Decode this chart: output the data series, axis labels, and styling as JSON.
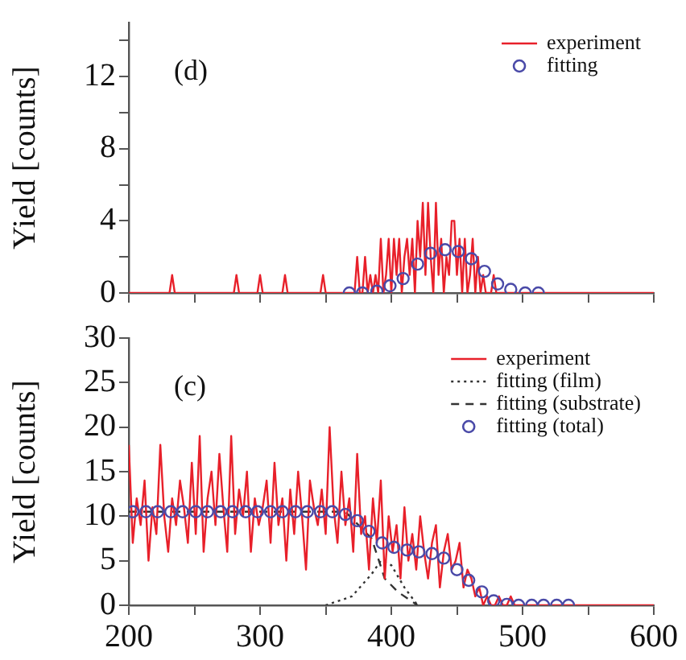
{
  "chart_data": [
    {
      "type": "line",
      "annotations": [
        "(d)"
      ],
      "ylabel": "Yield [counts]",
      "xlim": [
        200,
        600
      ],
      "xticks": [
        {
          "value": 200,
          "label": null
        },
        {
          "value": 250,
          "label": null
        },
        {
          "value": 300,
          "label": null
        },
        {
          "value": 350,
          "label": null
        },
        {
          "value": 400,
          "label": null
        },
        {
          "value": 450,
          "label": null
        },
        {
          "value": 500,
          "label": null
        },
        {
          "value": 550,
          "label": null
        },
        {
          "value": 600,
          "label": null
        }
      ],
      "ylim": [
        0,
        15
      ],
      "yticks": [
        0,
        {
          "value": 2,
          "label": null
        },
        4,
        {
          "value": 6,
          "label": null
        },
        8,
        {
          "value": 10,
          "label": null
        },
        12,
        {
          "value": 14,
          "label": null
        }
      ],
      "tick_labels": "y",
      "legend": "top right",
      "series": [
        {
          "name": "experiment",
          "color": "#e8202a",
          "line_style": "solid",
          "marker": "none",
          "x": [
            200,
            231,
            233,
            235,
            280,
            282,
            284,
            298,
            300,
            302,
            317,
            319,
            321,
            346,
            348,
            350,
            372,
            374,
            376,
            378,
            380,
            382,
            384,
            386,
            388,
            390,
            392,
            394,
            396,
            398,
            400,
            402,
            404,
            406,
            408,
            410,
            412,
            414,
            416,
            418,
            420,
            422,
            424,
            426,
            428,
            430,
            432,
            434,
            436,
            438,
            440,
            442,
            444,
            446,
            448,
            450,
            452,
            454,
            456,
            458,
            460,
            462,
            464,
            466,
            468,
            470,
            472,
            476,
            478,
            480,
            600
          ],
          "values": [
            0,
            0,
            1,
            0,
            0,
            1,
            0,
            0,
            1,
            0,
            0,
            1,
            0,
            0,
            1,
            0,
            0,
            2,
            0,
            0,
            2,
            0,
            1,
            0,
            1,
            0,
            3,
            0,
            1,
            3,
            0,
            3,
            1,
            3,
            0,
            2,
            3,
            1,
            3,
            0,
            4,
            2,
            5,
            1,
            5,
            2,
            0,
            5,
            1,
            3,
            0,
            2,
            1,
            4,
            4,
            1,
            3,
            0,
            3,
            0,
            1,
            3,
            0,
            2,
            0,
            1,
            0,
            0,
            1,
            0,
            0
          ]
        },
        {
          "name": "fitting",
          "type": "scatter",
          "color": "#4a4aa8",
          "marker": "circle",
          "x": [
            368,
            378,
            389,
            399,
            409,
            420,
            430,
            441,
            451,
            461,
            471,
            481,
            491,
            502,
            512
          ],
          "values": [
            0,
            0,
            0.1,
            0.4,
            0.8,
            1.6,
            2.2,
            2.4,
            2.3,
            1.9,
            1.2,
            0.5,
            0.2,
            0,
            0
          ]
        }
      ]
    },
    {
      "type": "line",
      "annotations": [
        "(c)"
      ],
      "ylabel": "Yield [counts]",
      "xlim": [
        200,
        600
      ],
      "xticks": [
        200,
        {
          "value": 250,
          "label": null
        },
        300,
        {
          "value": 350,
          "label": null
        },
        400,
        {
          "value": 450,
          "label": null
        },
        500,
        {
          "value": 550,
          "label": null
        },
        600
      ],
      "ylim": [
        0,
        30
      ],
      "yticks": [
        0,
        5,
        10,
        15,
        20,
        25,
        30
      ],
      "legend": "top right",
      "series": [
        {
          "name": "experiment",
          "color": "#e8202a",
          "line_style": "solid",
          "marker": "none",
          "x": [
            200,
            203,
            206,
            209,
            212,
            215,
            218,
            221,
            224,
            227,
            230,
            233,
            236,
            239,
            242,
            245,
            248,
            251,
            254,
            257,
            260,
            263,
            266,
            269,
            272,
            275,
            278,
            281,
            284,
            287,
            290,
            293,
            296,
            299,
            302,
            305,
            308,
            311,
            314,
            317,
            320,
            323,
            326,
            329,
            332,
            335,
            338,
            341,
            344,
            347,
            350,
            353,
            356,
            359,
            362,
            365,
            368,
            371,
            374,
            377,
            380,
            383,
            386,
            389,
            392,
            395,
            398,
            401,
            404,
            407,
            410,
            413,
            416,
            419,
            422,
            425,
            428,
            431,
            434,
            437,
            440,
            443,
            446,
            449,
            452,
            455,
            458,
            461,
            464,
            467,
            470,
            473,
            476,
            479,
            482,
            485,
            488,
            491,
            494,
            497,
            500,
            600
          ],
          "values": [
            18,
            7,
            12,
            9,
            14,
            5,
            11,
            8,
            18,
            10,
            6,
            12,
            9,
            14,
            11,
            7,
            16,
            8,
            19,
            6,
            12,
            15,
            9,
            17,
            11,
            6,
            19,
            8,
            13,
            10,
            15,
            6,
            12,
            9,
            11,
            14,
            7,
            16,
            9,
            12,
            5,
            13,
            8,
            15,
            10,
            4,
            14,
            11,
            9,
            13,
            8,
            20,
            11,
            7,
            15,
            9,
            12,
            6,
            17,
            8,
            10,
            4,
            12,
            7,
            14,
            3,
            10,
            6,
            9,
            3,
            11,
            5,
            8,
            4,
            10,
            6,
            3,
            7,
            9,
            2,
            6,
            8,
            4,
            5,
            7,
            2,
            4,
            3,
            1,
            2,
            0,
            1,
            0,
            0,
            1,
            0,
            0,
            1,
            0,
            0,
            0,
            0
          ]
        },
        {
          "name": "fitting (film)",
          "color": "#333333",
          "line_style": "dotted",
          "marker": "none",
          "x": [
            350,
            370,
            385,
            392,
            400,
            410,
            420
          ],
          "values": [
            0,
            1,
            3.5,
            5,
            4.5,
            2,
            0
          ]
        },
        {
          "name": "fitting (substrate)",
          "color": "#333333",
          "line_style": "dashed",
          "marker": "none",
          "x": [
            200,
            365,
            375,
            385,
            395,
            405,
            420
          ],
          "values": [
            10.5,
            10.5,
            9,
            7.5,
            3,
            1.5,
            0
          ]
        },
        {
          "name": "fitting (total)",
          "type": "scatter",
          "color": "#4a4aa8",
          "marker": "circle",
          "x": [
            203,
            213,
            222,
            232,
            241,
            251,
            260,
            270,
            279,
            289,
            298,
            308,
            317,
            327,
            336,
            346,
            355,
            365,
            374,
            383,
            393,
            402,
            412,
            421,
            431,
            440,
            450,
            459,
            469,
            478,
            488,
            497,
            507,
            516,
            526,
            535
          ],
          "values": [
            10.5,
            10.5,
            10.5,
            10.5,
            10.5,
            10.5,
            10.5,
            10.5,
            10.5,
            10.5,
            10.5,
            10.5,
            10.5,
            10.5,
            10.5,
            10.5,
            10.5,
            10.2,
            9.5,
            8.3,
            7,
            6.5,
            6.2,
            6,
            5.8,
            5.3,
            4,
            2.8,
            1.5,
            0.5,
            0.1,
            0,
            0,
            0,
            0,
            0
          ]
        }
      ]
    }
  ]
}
